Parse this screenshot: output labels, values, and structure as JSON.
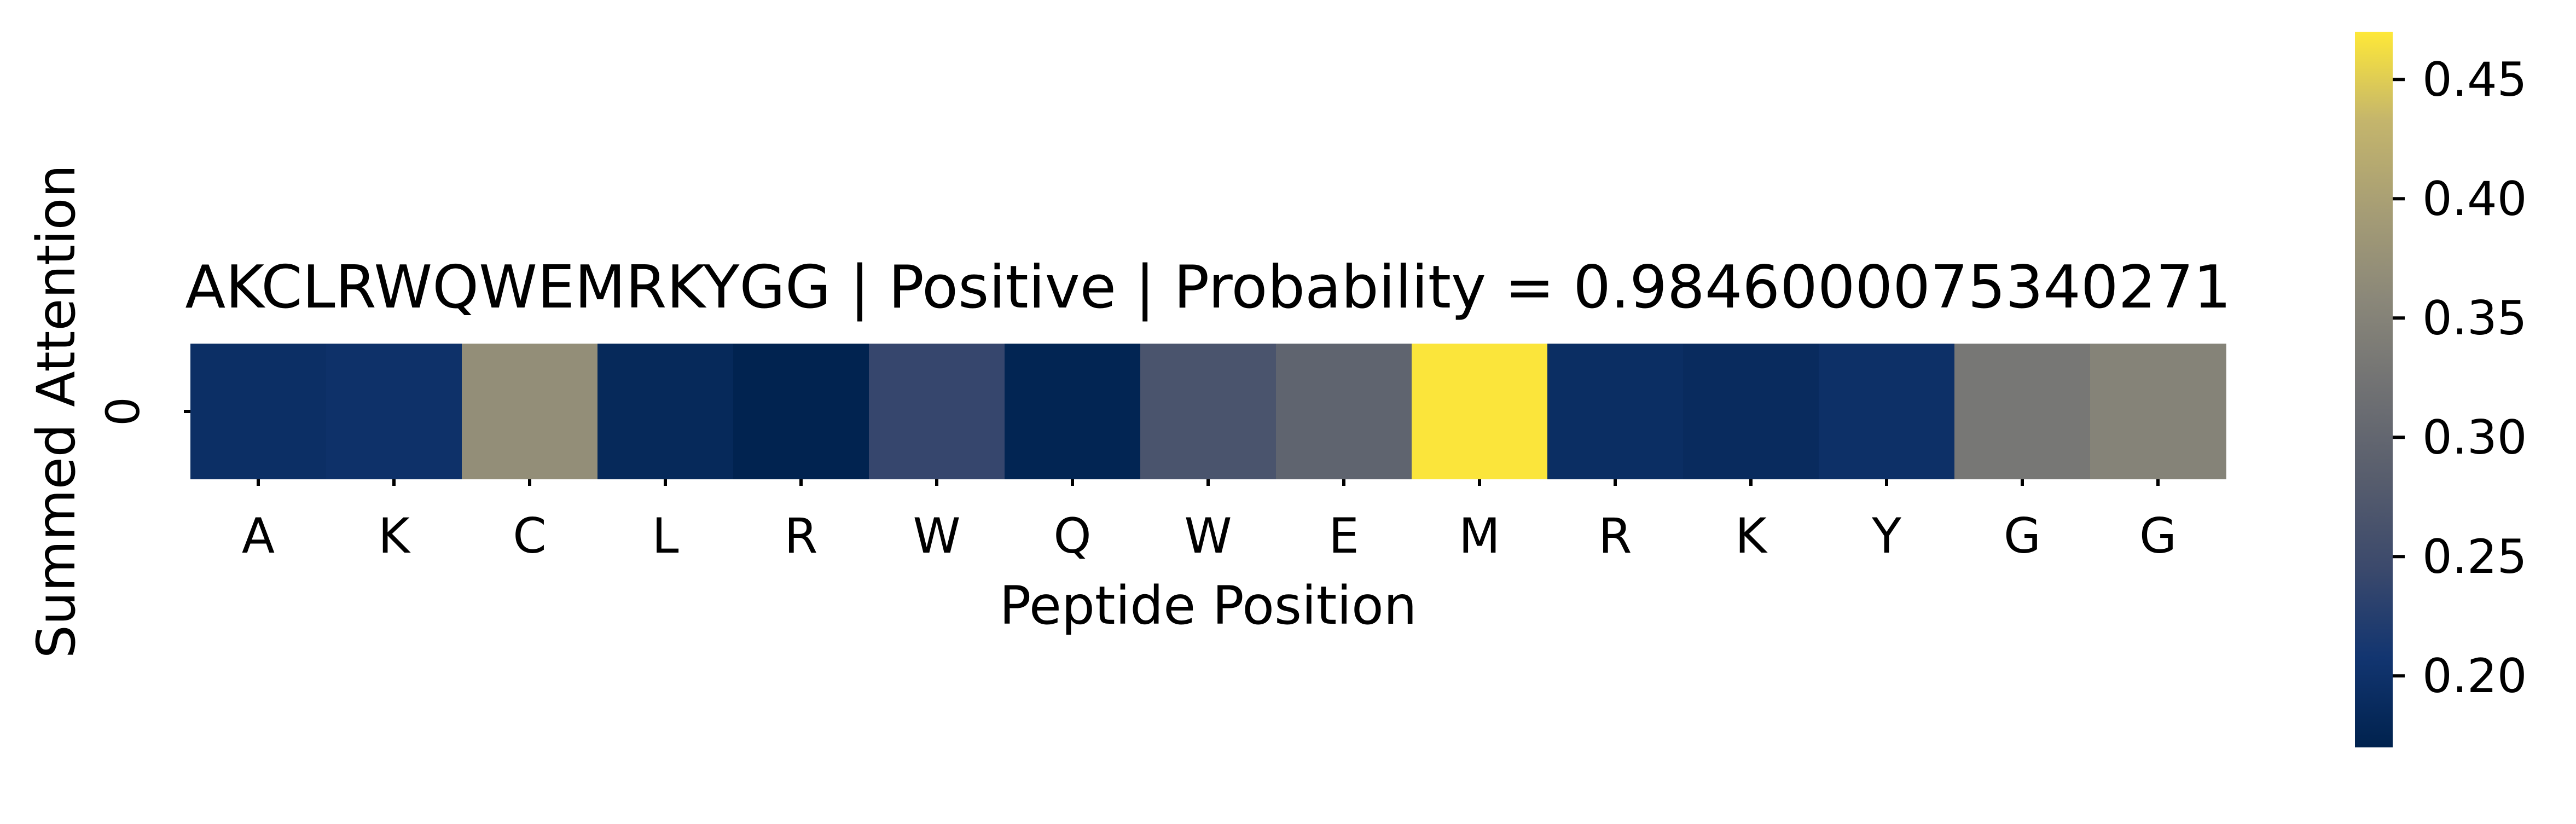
{
  "chart_data": {
    "type": "heatmap",
    "title": "AKCLRWQWEMRKYGG | Positive | Probability = 0.9846000075340271",
    "xlabel": "Peptide Position",
    "ylabel": "Summed Attention",
    "row_labels": [
      "0"
    ],
    "categories": [
      "A",
      "K",
      "C",
      "L",
      "R",
      "W",
      "Q",
      "W",
      "E",
      "M",
      "R",
      "K",
      "Y",
      "G",
      "G"
    ],
    "values": [
      0.195,
      0.2,
      0.37,
      0.183,
      0.172,
      0.24,
      0.175,
      0.265,
      0.295,
      0.468,
      0.193,
      0.188,
      0.198,
      0.33,
      0.35
    ],
    "colormap": "cividis",
    "colorbar": {
      "vmin": 0.17,
      "vmax": 0.47,
      "ticks": [
        "0.20",
        "0.25",
        "0.30",
        "0.35",
        "0.40",
        "0.45"
      ]
    },
    "grid": false,
    "legend": "colorbar-right"
  }
}
